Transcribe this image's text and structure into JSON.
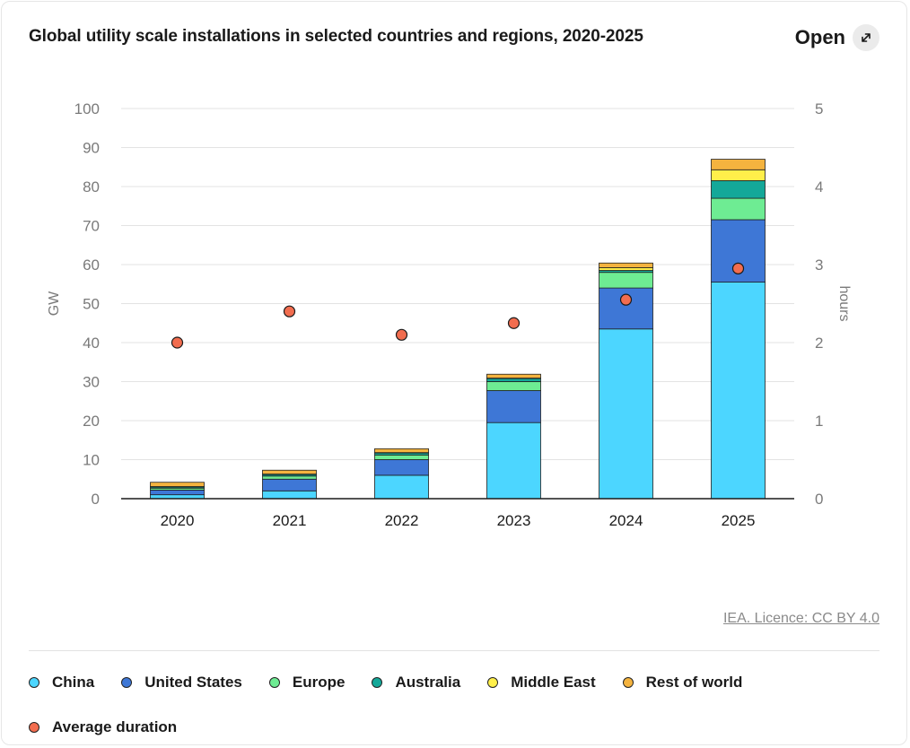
{
  "header": {
    "title": "Global utility scale installations in selected countries and regions, 2020-2025",
    "open_label": "Open"
  },
  "footer": {
    "licence": "IEA. Licence: CC BY 4.0"
  },
  "colors": {
    "China": "#4cd6ff",
    "United States": "#3e77d6",
    "Europe": "#6eec93",
    "Australia": "#14a899",
    "Middle East": "#ffef4a",
    "Rest of world": "#f4b33f",
    "Average duration": "#f26d4f",
    "grid": "#e3e3e3",
    "axis_text": "#7a7a7a"
  },
  "chart_data": {
    "type": "bar",
    "stacked": true,
    "categories": [
      "2020",
      "2021",
      "2022",
      "2023",
      "2024",
      "2025"
    ],
    "series": [
      {
        "name": "China",
        "values": [
          1,
          2,
          6,
          19.5,
          43.5,
          55.5
        ]
      },
      {
        "name": "United States",
        "values": [
          1.2,
          3,
          4,
          8.2,
          10.5,
          16
        ]
      },
      {
        "name": "Europe",
        "values": [
          0.5,
          0.8,
          1.2,
          2.3,
          4,
          5.5
        ]
      },
      {
        "name": "Australia",
        "values": [
          0.3,
          0.4,
          0.5,
          0.8,
          0.5,
          4.5
        ]
      },
      {
        "name": "Middle East",
        "values": [
          0.1,
          0.1,
          0.1,
          0.1,
          0.7,
          2.8
        ]
      },
      {
        "name": "Rest of world",
        "values": [
          1.1,
          1,
          1,
          1,
          1.2,
          2.7
        ]
      }
    ],
    "line_series": {
      "name": "Average duration",
      "axis": "right",
      "values": [
        2.0,
        2.4,
        2.1,
        2.25,
        2.55,
        2.95
      ]
    },
    "ylabel": "GW",
    "ylabel_right": "hours",
    "ylim": [
      0,
      100
    ],
    "yticks": [
      0,
      10,
      20,
      30,
      40,
      50,
      60,
      70,
      80,
      90,
      100
    ],
    "ylim_right": [
      0,
      5
    ],
    "yticks_right": [
      0,
      1,
      2,
      3,
      4,
      5
    ],
    "grid": true,
    "legend_position": "bottom"
  }
}
